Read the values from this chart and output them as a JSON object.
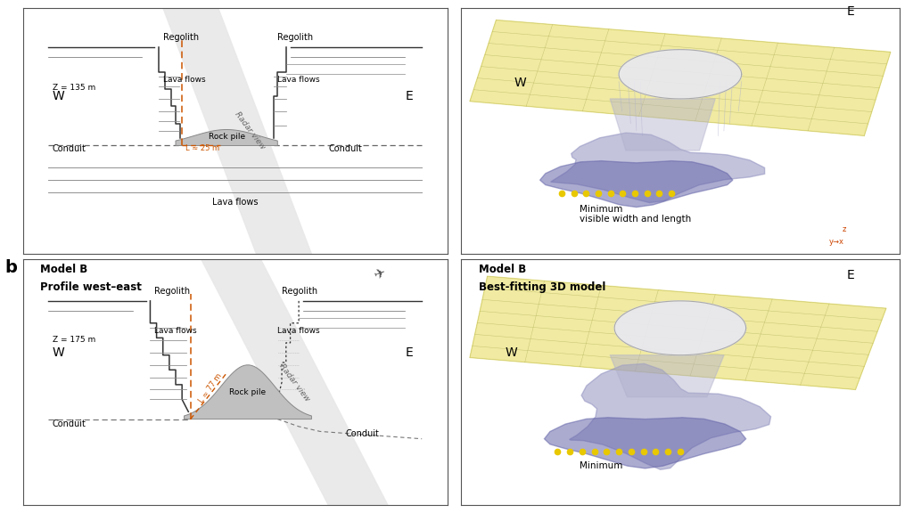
{
  "figure_bg": "#ffffff",
  "panel_bg": "#ffffff",
  "border_color": "#555555",
  "colors": {
    "rock_pile_fill": "#c0c0c0",
    "rock_pile_edge": "#888888",
    "conduit_dashed": "#555555",
    "orange_dashed": "#cc5500",
    "radar_strip": "#e0e0e0",
    "lava_line": "#666666",
    "outline": "#333333",
    "yellow_dots": "#e8c800",
    "3d_yellow_fill": "#e8e070",
    "3d_yellow_edge": "#aaa830",
    "3d_blue": "#8888bb",
    "3d_white": "#e8e8f0",
    "3d_mesh": "#aaaa50"
  },
  "panel1": {
    "W_label": "W",
    "E_label": "E",
    "regolith_left": "Regolith",
    "regolith_right": "Regolith",
    "lava_flows_left": "Lava flows",
    "lava_flows_right": "Lava flows",
    "lava_flows_bottom": "Lava flows",
    "Z_label": "Z = 135 m",
    "L_label": "L ≈ 25 m",
    "conduit_left": "Conduit",
    "conduit_right": "Conduit",
    "rock_pile": "Rock pile",
    "radar_view": "Radar view"
  },
  "panel2": {
    "E_label": "E",
    "W_label": "W",
    "annotation": "Minimum\nvisible width and length"
  },
  "panel3": {
    "W_label": "W",
    "E_label": "E",
    "title1": "Model B",
    "title2": "Profile west–east",
    "regolith_left": "Regolith",
    "regolith_right": "Regolith",
    "lava_flows_left": "Lava flows",
    "lava_flows_right": "Lava flows",
    "Z_label": "Z = 175 m",
    "L_label": "L ≈ 77 m",
    "conduit_left": "Conduit",
    "conduit_right": "Conduit",
    "rock_pile": "Rock pile",
    "radar_view": "Radar view"
  },
  "panel4": {
    "E_label": "E",
    "W_label": "W",
    "title1": "Model B",
    "title2": "Best-fitting 3D model",
    "annotation": "Minimum"
  }
}
